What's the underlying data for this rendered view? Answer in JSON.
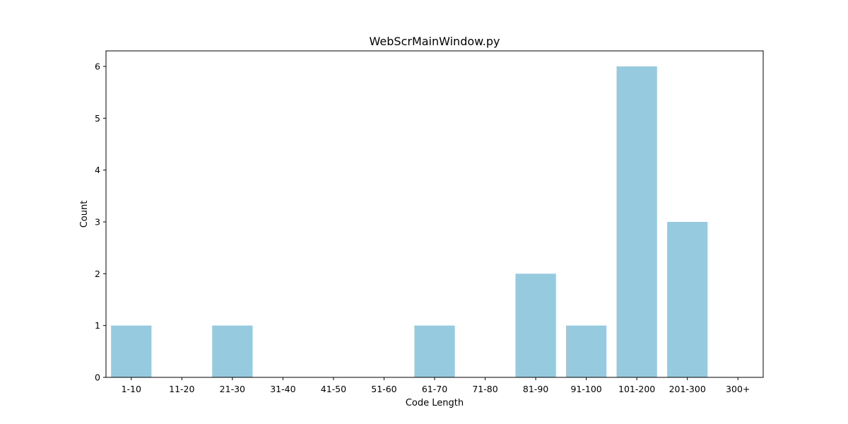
{
  "chart_data": {
    "type": "bar",
    "title": "WebScrMainWindow.py",
    "xlabel": "Code Length",
    "ylabel": "Count",
    "categories": [
      "1-10",
      "11-20",
      "21-30",
      "31-40",
      "41-50",
      "51-60",
      "61-70",
      "71-80",
      "81-90",
      "91-100",
      "101-200",
      "201-300",
      "300+"
    ],
    "values": [
      1,
      0,
      1,
      0,
      0,
      0,
      1,
      0,
      2,
      1,
      6,
      3,
      0
    ],
    "ylim": [
      0,
      6.3
    ],
    "yticks": [
      "0",
      "1",
      "2",
      "3",
      "4",
      "5",
      "6"
    ],
    "grid": false,
    "legend": "none",
    "bar_color": "#96cade",
    "axis_color": "#000000"
  }
}
